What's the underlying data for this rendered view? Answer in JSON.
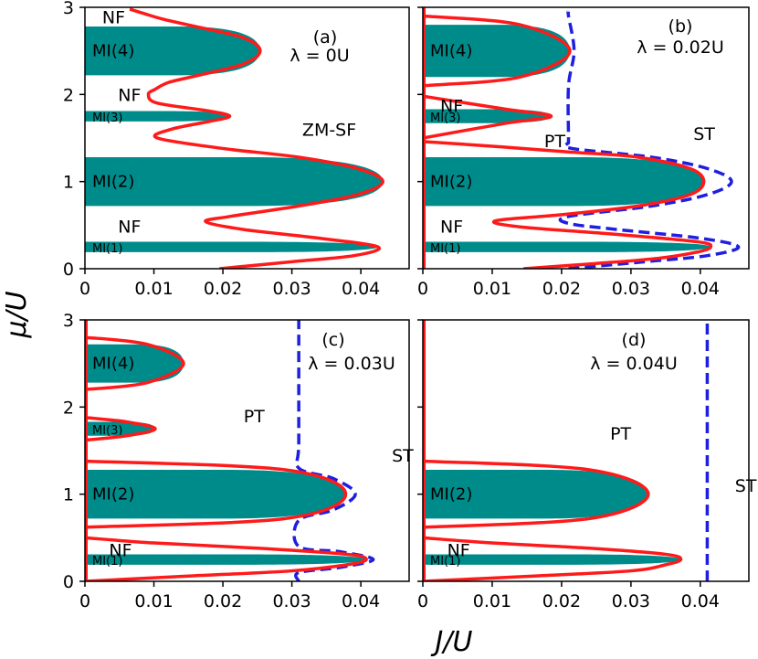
{
  "figure": {
    "ylabel": "μ/U",
    "xlabel": "J/U",
    "colors": {
      "mi_fill": "#008B8B",
      "boundary": "#ff1a1a",
      "st_boundary": "#1f1fe0"
    }
  },
  "chart_data": [
    {
      "type": "line",
      "panel": "(a)",
      "lambda_label": "λ = 0U",
      "xlim": [
        0,
        0.047
      ],
      "ylim": [
        0,
        3
      ],
      "xticks": [
        0,
        0.01,
        0.02,
        0.03,
        0.04
      ],
      "xtick_labels": [
        "0",
        "0.01",
        "0.02",
        "0.03",
        "0.04"
      ],
      "yticks": [
        0,
        1,
        2,
        3
      ],
      "ytick_labels": [
        "0",
        "1",
        "2",
        "3"
      ],
      "show_xtick_labels": true,
      "show_ytick_labels": true,
      "mott_lobes": [
        {
          "name": "MI(1)",
          "mu_range": [
            0.19,
            0.31
          ],
          "tip_mu": 0.25,
          "tip_J": 0.0425
        },
        {
          "name": "MI(2)",
          "mu_range": [
            0.72,
            1.28
          ],
          "tip_mu": 1.0,
          "tip_J": 0.0432
        },
        {
          "name": "MI(3)",
          "mu_range": [
            1.69,
            1.81
          ],
          "tip_mu": 1.75,
          "tip_J": 0.021
        },
        {
          "name": "MI(4)",
          "mu_range": [
            2.22,
            2.78
          ],
          "tip_mu": 2.5,
          "tip_J": 0.0254
        }
      ],
      "boundary": {
        "name": "SF boundary",
        "mu": [
          0.0,
          0.08,
          0.15,
          0.25,
          0.35,
          0.45,
          0.54,
          0.6,
          0.72,
          0.85,
          1.0,
          1.15,
          1.28,
          1.38,
          1.5,
          1.6,
          1.69,
          1.75,
          1.81,
          1.9,
          2.0,
          2.06,
          2.14,
          2.22,
          2.35,
          2.5,
          2.65,
          2.78,
          2.86,
          2.93,
          2.98
        ],
        "J": [
          0.0195,
          0.03,
          0.039,
          0.0425,
          0.034,
          0.023,
          0.0175,
          0.021,
          0.031,
          0.0395,
          0.0432,
          0.0395,
          0.031,
          0.02,
          0.0105,
          0.0125,
          0.018,
          0.021,
          0.018,
          0.0105,
          0.0092,
          0.0102,
          0.0122,
          0.0165,
          0.023,
          0.0254,
          0.023,
          0.016,
          0.0115,
          0.0085,
          0.0065
        ]
      },
      "st_boundary": null,
      "annotations": [
        {
          "text": "NF",
          "x": 0.0025,
          "y": 2.89
        },
        {
          "text": "NF",
          "x": 0.0048,
          "y": 2.0
        },
        {
          "text": "NF",
          "x": 0.0048,
          "y": 0.49
        },
        {
          "text": "ZM-SF",
          "x": 0.0315,
          "y": 1.6
        }
      ]
    },
    {
      "type": "line",
      "panel": "(b)",
      "lambda_label": "λ = 0.02U",
      "xlim": [
        0,
        0.047
      ],
      "ylim": [
        0,
        3
      ],
      "xticks": [
        0,
        0.01,
        0.02,
        0.03,
        0.04
      ],
      "xtick_labels": [
        "0",
        "0.01",
        "0.02",
        "0.03",
        "0.04"
      ],
      "yticks": [
        0,
        1,
        2,
        3
      ],
      "ytick_labels": [],
      "show_xtick_labels": true,
      "show_ytick_labels": false,
      "mott_lobes": [
        {
          "name": "MI(1)",
          "mu_range": [
            0.19,
            0.31
          ],
          "tip_mu": 0.25,
          "tip_J": 0.0415
        },
        {
          "name": "MI(2)",
          "mu_range": [
            0.72,
            1.28
          ],
          "tip_mu": 1.0,
          "tip_J": 0.0405
        },
        {
          "name": "MI(3)",
          "mu_range": [
            1.67,
            1.83
          ],
          "tip_mu": 1.75,
          "tip_J": 0.0185
        },
        {
          "name": "MI(4)",
          "mu_range": [
            2.2,
            2.8
          ],
          "tip_mu": 2.5,
          "tip_J": 0.0212
        }
      ],
      "boundary": {
        "name": "SF boundary",
        "mu": [
          0.0,
          0.06,
          0.12,
          0.19,
          0.25,
          0.31,
          0.4,
          0.48,
          0.55,
          0.62,
          0.72,
          0.85,
          1.0,
          1.15,
          1.28,
          1.34,
          1.4,
          1.46
        ],
        "J": [
          0.0145,
          0.025,
          0.034,
          0.0395,
          0.0415,
          0.0395,
          0.027,
          0.014,
          0.0105,
          0.02,
          0.031,
          0.0385,
          0.0405,
          0.0385,
          0.031,
          0.021,
          0.011,
          0.0
        ],
        "extra_lobes": [
          {
            "mu": [
              1.5,
              1.67,
              1.75,
              1.83,
              1.98
            ],
            "J": [
              0.0,
              0.012,
              0.0185,
              0.012,
              0.0
            ]
          },
          {
            "mu": [
              2.1,
              2.2,
              2.5,
              2.8,
              2.9
            ],
            "J": [
              0.0,
              0.014,
              0.0212,
              0.014,
              0.0
            ]
          }
        ]
      },
      "st_boundary": {
        "name": "ST boundary",
        "mu": [
          0.0,
          0.08,
          0.15,
          0.25,
          0.35,
          0.45,
          0.52,
          0.6,
          0.72,
          0.85,
          1.0,
          1.15,
          1.28,
          1.38,
          1.45,
          1.5,
          2.1,
          2.5,
          2.9,
          2.95
        ],
        "J": [
          0.021,
          0.032,
          0.041,
          0.0455,
          0.04,
          0.028,
          0.021,
          0.021,
          0.033,
          0.041,
          0.0445,
          0.041,
          0.033,
          0.0215,
          0.021,
          0.021,
          0.021,
          0.0218,
          0.021,
          0.021
        ]
      },
      "annotations": [
        {
          "text": "NF",
          "x": 0.0025,
          "y": 1.87
        },
        {
          "text": "NF",
          "x": 0.0025,
          "y": 0.49
        },
        {
          "text": "PT",
          "x": 0.0175,
          "y": 1.47
        },
        {
          "text": "ST",
          "x": 0.039,
          "y": 1.55
        }
      ]
    },
    {
      "type": "line",
      "panel": "(c)",
      "lambda_label": "λ = 0.03U",
      "xlim": [
        0,
        0.047
      ],
      "ylim": [
        0,
        3
      ],
      "xticks": [
        0,
        0.01,
        0.02,
        0.03,
        0.04
      ],
      "xtick_labels": [
        "0",
        "0.01",
        "0.02",
        "0.03",
        "0.04"
      ],
      "yticks": [
        0,
        1,
        2,
        3
      ],
      "ytick_labels": [
        "0",
        "1",
        "2",
        "3"
      ],
      "show_xtick_labels": true,
      "show_ytick_labels": true,
      "mott_lobes": [
        {
          "name": "MI(1)",
          "mu_range": [
            0.19,
            0.31
          ],
          "tip_mu": 0.25,
          "tip_J": 0.0408
        },
        {
          "name": "MI(2)",
          "mu_range": [
            0.72,
            1.28
          ],
          "tip_mu": 1.0,
          "tip_J": 0.0378
        },
        {
          "name": "MI(3)",
          "mu_range": [
            1.67,
            1.83
          ],
          "tip_mu": 1.75,
          "tip_J": 0.0102
        },
        {
          "name": "MI(4)",
          "mu_range": [
            2.28,
            2.72
          ],
          "tip_mu": 2.5,
          "tip_J": 0.0143
        }
      ],
      "boundary": {
        "name": "SF boundary",
        "mu": [
          0.0,
          0.06,
          0.12,
          0.19,
          0.25,
          0.31,
          0.38,
          0.44,
          0.5
        ],
        "J": [
          0.0,
          0.015,
          0.03,
          0.038,
          0.0408,
          0.038,
          0.025,
          0.01,
          0.0
        ],
        "extra_lobes": [
          {
            "mu": [
              0.62,
              0.72,
              1.0,
              1.28,
              1.38
            ],
            "J": [
              0.0,
              0.029,
              0.0378,
              0.029,
              0.0
            ]
          },
          {
            "mu": [
              1.62,
              1.67,
              1.75,
              1.83,
              1.88
            ],
            "J": [
              0.0,
              0.006,
              0.0102,
              0.006,
              0.0
            ]
          },
          {
            "mu": [
              2.2,
              2.28,
              2.5,
              2.72,
              2.8
            ],
            "J": [
              0.0,
              0.009,
              0.0143,
              0.009,
              0.0
            ]
          }
        ]
      },
      "st_boundary": {
        "name": "ST boundary",
        "mu": [
          0.0,
          0.1,
          0.16,
          0.25,
          0.34,
          0.4,
          0.7,
          0.82,
          1.0,
          1.18,
          1.3,
          1.6,
          3.0
        ],
        "J": [
          0.031,
          0.031,
          0.037,
          0.0418,
          0.037,
          0.031,
          0.031,
          0.036,
          0.0392,
          0.036,
          0.031,
          0.031,
          0.031
        ]
      },
      "annotations": [
        {
          "text": "NF",
          "x": 0.0035,
          "y": 0.36
        },
        {
          "text": "PT",
          "x": 0.023,
          "y": 1.9
        },
        {
          "text": "ST",
          "x": 0.0445,
          "y": 1.45
        }
      ]
    },
    {
      "type": "line",
      "panel": "(d)",
      "lambda_label": "λ = 0.04U",
      "xlim": [
        0,
        0.047
      ],
      "ylim": [
        0,
        3
      ],
      "xticks": [
        0,
        0.01,
        0.02,
        0.03,
        0.04
      ],
      "xtick_labels": [
        "0",
        "0.01",
        "0.02",
        "0.03",
        "0.04"
      ],
      "yticks": [
        0,
        1,
        2,
        3
      ],
      "ytick_labels": [],
      "show_xtick_labels": true,
      "show_ytick_labels": false,
      "mott_lobes": [
        {
          "name": "MI(1)",
          "mu_range": [
            0.19,
            0.31
          ],
          "tip_mu": 0.25,
          "tip_J": 0.0372
        },
        {
          "name": "MI(2)",
          "mu_range": [
            0.72,
            1.28
          ],
          "tip_mu": 1.0,
          "tip_J": 0.0325
        }
      ],
      "boundary": {
        "name": "SF boundary",
        "mu": [
          0.0,
          0.06,
          0.12,
          0.19,
          0.25,
          0.31,
          0.38,
          0.44,
          0.5
        ],
        "J": [
          0.0,
          0.016,
          0.03,
          0.035,
          0.0372,
          0.035,
          0.024,
          0.01,
          0.0
        ],
        "extra_lobes": [
          {
            "mu": [
              0.62,
              0.72,
              1.0,
              1.28,
              1.38
            ],
            "J": [
              0.0,
              0.024,
              0.0325,
              0.024,
              0.0
            ]
          }
        ]
      },
      "st_boundary": {
        "name": "ST boundary",
        "mu": [
          0.0,
          3.0
        ],
        "J": [
          0.041,
          0.041
        ]
      },
      "annotations": [
        {
          "text": "NF",
          "x": 0.0035,
          "y": 0.36
        },
        {
          "text": "PT",
          "x": 0.027,
          "y": 1.7
        },
        {
          "text": "ST",
          "x": 0.045,
          "y": 1.1
        }
      ]
    }
  ]
}
